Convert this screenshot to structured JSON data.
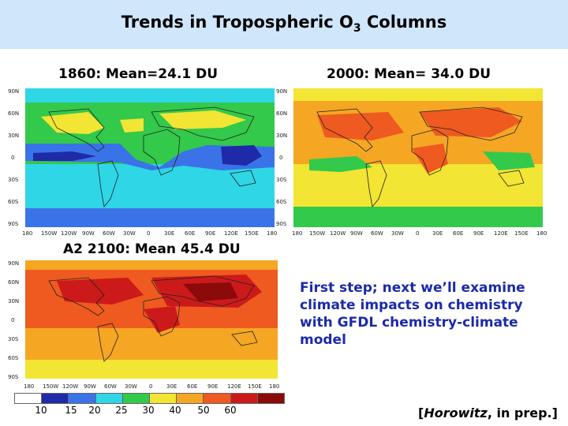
{
  "title": {
    "prefix": "Trends in Tropospheric O",
    "subscript": "3",
    "suffix": " Columns"
  },
  "maps": [
    {
      "label": "1860: Mean=24.1 DU",
      "scenario": "1860",
      "mean_du": 24.1
    },
    {
      "label": "2000: Mean= 34.0 DU",
      "scenario": "2000",
      "mean_du": 34.0
    },
    {
      "label": "A2 2100: Mean 45.4 DU",
      "scenario": "A2 2100",
      "mean_du": 45.4
    }
  ],
  "lat_labels": [
    "90N",
    "60N",
    "30N",
    "0",
    "30S",
    "60S",
    "90S"
  ],
  "lon_labels": [
    "180",
    "150W",
    "120W",
    "90W",
    "60W",
    "30W",
    "0",
    "30E",
    "60E",
    "90E",
    "120E",
    "150E",
    "180"
  ],
  "colorbar": {
    "levels": [
      "10",
      "15",
      "20",
      "25",
      "30",
      "40",
      "50",
      "60"
    ],
    "colors": [
      "#ffffff",
      "#1e2aa8",
      "#3a73e8",
      "#2fd6e6",
      "#33c94a",
      "#f2e533",
      "#f5a623",
      "#ee5a1f",
      "#cc1a1a",
      "#8b0a0a"
    ]
  },
  "note": "First step; next we’ll examine climate impacts on chemistry with GFDL chemistry-climate model",
  "citation": {
    "open": "[",
    "author": "Horowitz",
    "rest": ", in prep.]"
  }
}
